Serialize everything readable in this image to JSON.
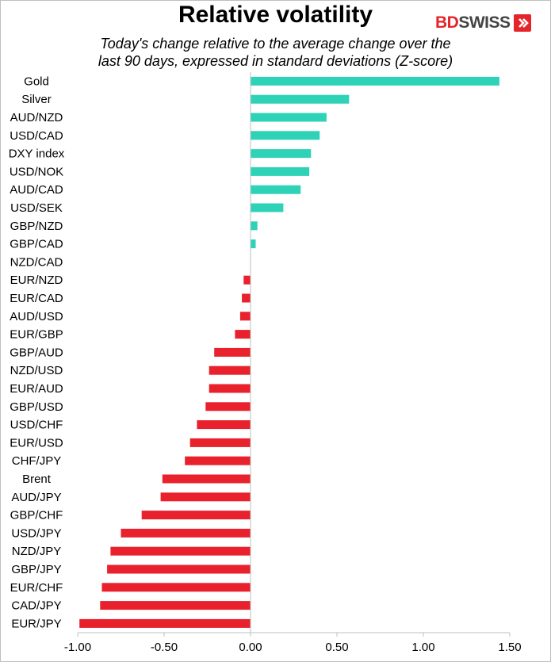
{
  "title": "Relative volatility",
  "subtitle_line1": "Today's change relative to the  average change over the",
  "subtitle_line2": "last 90 days, expressed in standard deviations (Z-score)",
  "logo": {
    "part1": "BD",
    "part2": "SWISS",
    "icon": "logo-chevron-icon"
  },
  "colors": {
    "positive": "#2ed3b7",
    "negative": "#e8212c",
    "axis": "#bfbfbf"
  },
  "chart_data": {
    "type": "bar",
    "orientation": "horizontal",
    "categories": [
      "Gold",
      "Silver",
      "AUD/NZD",
      "USD/CAD",
      "DXY index",
      "USD/NOK",
      "AUD/CAD",
      "USD/SEK",
      "GBP/NZD",
      "GBP/CAD",
      "NZD/CAD",
      "EUR/NZD",
      "EUR/CAD",
      "AUD/USD",
      "EUR/GBP",
      "GBP/AUD",
      "NZD/USD",
      "EUR/AUD",
      "GBP/USD",
      "USD/CHF",
      "EUR/USD",
      "CHF/JPY",
      "Brent",
      "AUD/JPY",
      "GBP/CHF",
      "USD/JPY",
      "NZD/JPY",
      "GBP/JPY",
      "EUR/CHF",
      "CAD/JPY",
      "EUR/JPY"
    ],
    "values": [
      1.44,
      0.57,
      0.44,
      0.4,
      0.35,
      0.34,
      0.29,
      0.19,
      0.04,
      0.03,
      0.0,
      -0.04,
      -0.05,
      -0.06,
      -0.09,
      -0.21,
      -0.24,
      -0.24,
      -0.26,
      -0.31,
      -0.35,
      -0.38,
      -0.51,
      -0.52,
      -0.63,
      -0.75,
      -0.81,
      -0.83,
      -0.86,
      -0.87,
      -0.99
    ],
    "xlim": [
      -1.0,
      1.5
    ],
    "xticks": [
      -1.0,
      -0.5,
      0.0,
      0.5,
      1.0,
      1.5
    ],
    "xtick_labels": [
      "-1.00",
      "-0.50",
      "0.00",
      "0.50",
      "1.00",
      "1.50"
    ],
    "xlabel": "",
    "ylabel": "",
    "grid": false,
    "legend": "none"
  }
}
